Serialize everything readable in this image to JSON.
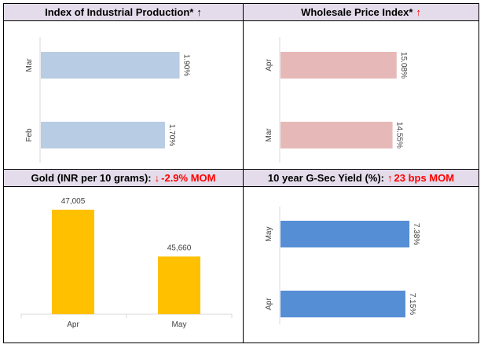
{
  "panels": {
    "iip": {
      "title": "Index of Industrial Production*",
      "arrow": "↑",
      "arrow_color": "#000000"
    },
    "wpi": {
      "title": "Wholesale Price Index*",
      "arrow": "↑",
      "arrow_color": "#ff0000"
    },
    "gold": {
      "title": "Gold (INR per 10 grams):",
      "arrow": "↓",
      "arrow_color": "#ff0000",
      "change": "-2.9% MOM"
    },
    "gsec": {
      "title": "10 year G-Sec Yield (%):",
      "arrow": "↑",
      "arrow_color": "#ff0000",
      "change": "23 bps MOM"
    }
  },
  "chart_data": [
    {
      "id": "iip",
      "type": "bar",
      "orientation": "horizontal",
      "color": "#b8cce4",
      "categories": [
        "Mar",
        "Feb"
      ],
      "values": [
        1.9,
        1.7
      ],
      "labels": [
        "1.90%",
        "1.70%"
      ],
      "xlim": [
        0,
        2.4
      ]
    },
    {
      "id": "wpi",
      "type": "bar",
      "orientation": "horizontal",
      "color": "#e6b9b8",
      "categories": [
        "Apr",
        "Mar"
      ],
      "values": [
        15.08,
        14.55
      ],
      "labels": [
        "15.08%",
        "14.55%"
      ],
      "xlim": [
        0,
        20
      ]
    },
    {
      "id": "gold",
      "type": "bar",
      "orientation": "vertical",
      "color": "#ffc000",
      "categories": [
        "Apr",
        "May"
      ],
      "values": [
        47005,
        45660
      ],
      "labels": [
        "47,005",
        "45,660"
      ],
      "ylim": [
        44000,
        47500
      ]
    },
    {
      "id": "gsec",
      "type": "bar",
      "orientation": "horizontal",
      "color": "#558ed5",
      "categories": [
        "May",
        "Apr"
      ],
      "values": [
        7.38,
        7.15
      ],
      "labels": [
        "7.38%",
        "7.15%"
      ],
      "xlim": [
        0,
        9.4
      ]
    }
  ]
}
